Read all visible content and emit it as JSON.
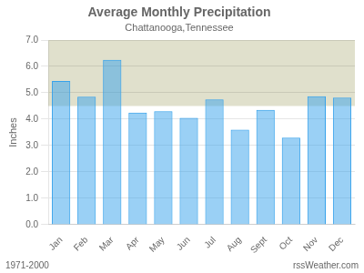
{
  "chart_data": {
    "type": "bar",
    "title": "Average Monthly Precipitation",
    "subtitle": "Chattanooga,Tennessee",
    "y_label": "Inches",
    "categories": [
      "Jan",
      "Feb",
      "Mar",
      "Apr",
      "May",
      "Jun",
      "Jul",
      "Aug",
      "Sept",
      "Oct",
      "Nov",
      "Dec"
    ],
    "values": [
      5.45,
      4.85,
      6.25,
      4.25,
      4.3,
      4.05,
      4.75,
      3.6,
      4.35,
      3.3,
      4.87,
      4.82
    ],
    "ylim": [
      0.0,
      7.0
    ],
    "yticks": [
      {
        "value": 0,
        "label": "0.0"
      },
      {
        "value": 1,
        "label": "1.0"
      },
      {
        "value": 2,
        "label": "2.0"
      },
      {
        "value": 3,
        "label": "3.0"
      },
      {
        "value": 4,
        "label": "4.0"
      },
      {
        "value": 5,
        "label": "5.0"
      },
      {
        "value": 6,
        "label": "6.0"
      },
      {
        "value": 7,
        "label": "7.0"
      }
    ],
    "grid": true,
    "bands": [
      {
        "ymin": 4.5,
        "ymax": 7.0,
        "color": "#e0e0cc"
      }
    ],
    "annotations": [
      "1971-2000",
      "rssWeather.com"
    ]
  }
}
